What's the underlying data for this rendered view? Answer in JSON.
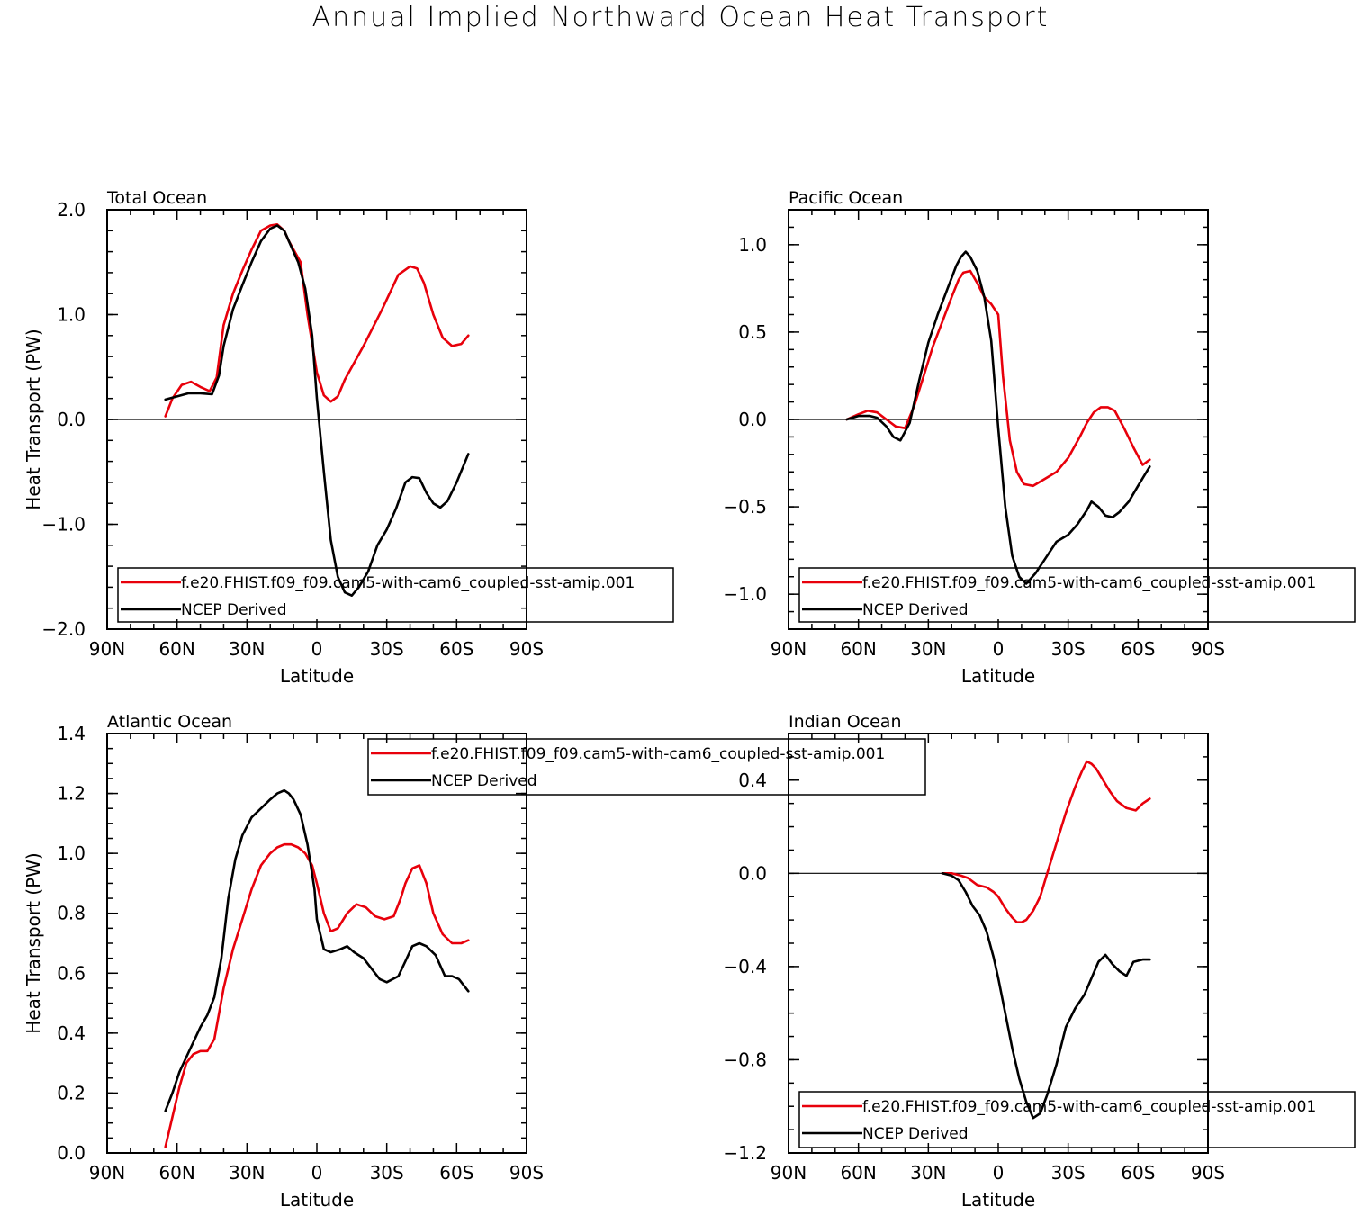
{
  "title": "Annual Implied Northward Ocean Heat Transport",
  "colors": {
    "model": "#e8000b",
    "obs": "#000000",
    "zero_line": "#000000"
  },
  "chart_data": [
    {
      "type": "line",
      "title": "Total Ocean",
      "xlabel": "Latitude",
      "ylabel": "Heat Transport (PW)",
      "xlim": [
        90,
        -90
      ],
      "ylim": [
        -2.0,
        2.0
      ],
      "xticks": [
        90,
        60,
        30,
        0,
        -30,
        -60,
        -90
      ],
      "xticklabels": [
        "90N",
        "60N",
        "30N",
        "0",
        "30S",
        "60S",
        "90S"
      ],
      "yticks": [
        -2.0,
        -1.0,
        0.0,
        1.0,
        2.0
      ],
      "yticklabels": [
        "−2.0",
        "−1.0",
        "0.0",
        "1.0",
        "2.0"
      ],
      "yminor": 0.2,
      "zero_line": true,
      "legend_placement": "bottom",
      "series": [
        {
          "name": "f.e20.FHIST.f09_f09.cam5-with-cam6_coupled-sst-amip.001",
          "color": "#e8000b",
          "x": [
            65,
            62,
            58,
            54,
            50,
            46,
            43,
            40,
            36,
            32,
            28,
            24,
            20,
            17,
            14,
            12,
            10,
            7,
            4,
            0,
            -3,
            -6,
            -9,
            -12,
            -20,
            -28,
            -35,
            -40,
            -43,
            -46,
            -50,
            -54,
            -58,
            -62,
            -65
          ],
          "y": [
            0.03,
            0.2,
            0.33,
            0.36,
            0.31,
            0.27,
            0.4,
            0.9,
            1.2,
            1.42,
            1.62,
            1.8,
            1.85,
            1.86,
            1.8,
            1.7,
            1.62,
            1.5,
            1.0,
            0.45,
            0.23,
            0.17,
            0.22,
            0.38,
            0.7,
            1.05,
            1.38,
            1.46,
            1.44,
            1.3,
            1.0,
            0.78,
            0.7,
            0.72,
            0.8
          ]
        },
        {
          "name": "NCEP Derived",
          "color": "#000000",
          "x": [
            65,
            60,
            55,
            50,
            45,
            42,
            40,
            36,
            32,
            28,
            24,
            20,
            17,
            14,
            11,
            8,
            5,
            2,
            0,
            -3,
            -6,
            -9,
            -12,
            -15,
            -18,
            -22,
            -26,
            -30,
            -34,
            -38,
            -41,
            -44,
            -47,
            -50,
            -53,
            -56,
            -60,
            -65
          ],
          "y": [
            0.19,
            0.22,
            0.25,
            0.25,
            0.24,
            0.42,
            0.7,
            1.05,
            1.28,
            1.5,
            1.7,
            1.82,
            1.85,
            1.8,
            1.65,
            1.5,
            1.25,
            0.8,
            0.2,
            -0.5,
            -1.15,
            -1.5,
            -1.65,
            -1.68,
            -1.6,
            -1.45,
            -1.2,
            -1.05,
            -0.85,
            -0.6,
            -0.55,
            -0.56,
            -0.7,
            -0.8,
            -0.84,
            -0.78,
            -0.6,
            -0.33
          ]
        }
      ]
    },
    {
      "type": "line",
      "title": "Pacific Ocean",
      "xlabel": "Latitude",
      "ylabel": "",
      "xlim": [
        90,
        -90
      ],
      "ylim": [
        -1.2,
        1.2
      ],
      "xticks": [
        90,
        60,
        30,
        0,
        -30,
        -60,
        -90
      ],
      "xticklabels": [
        "90N",
        "60N",
        "30N",
        "0",
        "30S",
        "60S",
        "90S"
      ],
      "yticks": [
        -1.0,
        -0.5,
        0.0,
        0.5,
        1.0
      ],
      "yticklabels": [
        "−1.0",
        "−0.5",
        "0.0",
        "0.5",
        "1.0"
      ],
      "yminor": 0.1,
      "zero_line": true,
      "legend_placement": "bottom",
      "series": [
        {
          "name": "f.e20.FHIST.f09_f09.cam5-with-cam6_coupled-sst-amip.001",
          "color": "#e8000b",
          "x": [
            65,
            60,
            56,
            52,
            48,
            44,
            40,
            36,
            32,
            28,
            24,
            20,
            17,
            15,
            12,
            9,
            6,
            3,
            0,
            -2,
            -5,
            -8,
            -11,
            -15,
            -20,
            -25,
            -30,
            -35,
            -38,
            -41,
            -44,
            -47,
            -50,
            -54,
            -58,
            -62,
            -65
          ],
          "y": [
            0.0,
            0.03,
            0.05,
            0.04,
            0.0,
            -0.04,
            -0.05,
            0.08,
            0.25,
            0.42,
            0.56,
            0.7,
            0.8,
            0.84,
            0.85,
            0.78,
            0.7,
            0.66,
            0.6,
            0.25,
            -0.12,
            -0.3,
            -0.37,
            -0.38,
            -0.34,
            -0.3,
            -0.22,
            -0.1,
            -0.02,
            0.04,
            0.07,
            0.07,
            0.05,
            -0.05,
            -0.16,
            -0.26,
            -0.23
          ]
        },
        {
          "name": "NCEP Derived",
          "color": "#000000",
          "x": [
            65,
            60,
            55,
            52,
            48,
            45,
            42,
            38,
            34,
            30,
            26,
            22,
            18,
            16,
            14,
            12,
            9,
            6,
            3,
            0,
            -3,
            -6,
            -9,
            -12,
            -16,
            -20,
            -25,
            -30,
            -34,
            -38,
            -40,
            -43,
            -46,
            -49,
            -52,
            -56,
            -60,
            -65
          ],
          "y": [
            0.0,
            0.02,
            0.02,
            0.01,
            -0.04,
            -0.1,
            -0.12,
            -0.02,
            0.22,
            0.44,
            0.6,
            0.74,
            0.88,
            0.93,
            0.96,
            0.93,
            0.85,
            0.7,
            0.45,
            -0.05,
            -0.5,
            -0.78,
            -0.9,
            -0.94,
            -0.88,
            -0.8,
            -0.7,
            -0.66,
            -0.6,
            -0.52,
            -0.47,
            -0.5,
            -0.55,
            -0.56,
            -0.53,
            -0.47,
            -0.38,
            -0.27
          ]
        }
      ]
    },
    {
      "type": "line",
      "title": "Atlantic Ocean",
      "xlabel": "Latitude",
      "ylabel": "Heat Transport (PW)",
      "xlim": [
        90,
        -90
      ],
      "ylim": [
        0.0,
        1.4
      ],
      "xticks": [
        90,
        60,
        30,
        0,
        -30,
        -60,
        -90
      ],
      "xticklabels": [
        "90N",
        "60N",
        "30N",
        "0",
        "30S",
        "60S",
        "90S"
      ],
      "yticks": [
        0.0,
        0.2,
        0.4,
        0.6,
        0.8,
        1.0,
        1.2,
        1.4
      ],
      "yticklabels": [
        "0.0",
        "0.2",
        "0.4",
        "0.6",
        "0.8",
        "1.0",
        "1.2",
        "1.4"
      ],
      "yminor": 0.05,
      "zero_line": false,
      "legend_placement": "top-right",
      "series": [
        {
          "name": "f.e20.FHIST.f09_f09.cam5-with-cam6_coupled-sst-amip.001",
          "color": "#e8000b",
          "x": [
            65,
            62,
            59,
            56,
            53,
            50,
            47,
            44,
            40,
            36,
            32,
            28,
            24,
            20,
            17,
            14,
            11,
            8,
            5,
            2,
            0,
            -3,
            -6,
            -9,
            -13,
            -17,
            -21,
            -25,
            -29,
            -33,
            -36,
            -38,
            -41,
            -44,
            -47,
            -50,
            -54,
            -58,
            -62,
            -65
          ],
          "y": [
            0.02,
            0.12,
            0.22,
            0.3,
            0.33,
            0.34,
            0.34,
            0.38,
            0.55,
            0.68,
            0.78,
            0.88,
            0.96,
            1.0,
            1.02,
            1.03,
            1.03,
            1.02,
            1.0,
            0.96,
            0.9,
            0.8,
            0.74,
            0.75,
            0.8,
            0.83,
            0.82,
            0.79,
            0.78,
            0.79,
            0.85,
            0.9,
            0.95,
            0.96,
            0.9,
            0.8,
            0.73,
            0.7,
            0.7,
            0.71
          ]
        },
        {
          "name": "NCEP Derived",
          "color": "#000000",
          "x": [
            65,
            62,
            59,
            56,
            53,
            50,
            47,
            44,
            41,
            38,
            35,
            32,
            28,
            24,
            20,
            17,
            14,
            12,
            10,
            7,
            4,
            1,
            0,
            -3,
            -6,
            -10,
            -13,
            -16,
            -20,
            -24,
            -27,
            -30,
            -35,
            -38,
            -41,
            -44,
            -47,
            -51,
            -55,
            -58,
            -61,
            -65
          ],
          "y": [
            0.14,
            0.2,
            0.27,
            0.32,
            0.37,
            0.42,
            0.46,
            0.52,
            0.65,
            0.85,
            0.98,
            1.06,
            1.12,
            1.15,
            1.18,
            1.2,
            1.21,
            1.2,
            1.18,
            1.13,
            1.03,
            0.88,
            0.78,
            0.68,
            0.67,
            0.68,
            0.69,
            0.67,
            0.65,
            0.61,
            0.58,
            0.57,
            0.59,
            0.64,
            0.69,
            0.7,
            0.69,
            0.66,
            0.59,
            0.59,
            0.58,
            0.54
          ]
        }
      ]
    },
    {
      "type": "line",
      "title": "Indian Ocean",
      "xlabel": "Latitude",
      "ylabel": "",
      "xlim": [
        90,
        -90
      ],
      "ylim": [
        -1.2,
        0.6
      ],
      "xticks": [
        90,
        60,
        30,
        0,
        -30,
        -60,
        -90
      ],
      "xticklabels": [
        "90N",
        "60N",
        "30N",
        "0",
        "30S",
        "60S",
        "90S"
      ],
      "yticks": [
        -1.2,
        -0.8,
        -0.4,
        0.0,
        0.4
      ],
      "yticklabels": [
        "−1.2",
        "−0.8",
        "−0.4",
        "0.0",
        "0.4"
      ],
      "yminor": 0.1,
      "zero_line": true,
      "legend_placement": "bottom-right",
      "series": [
        {
          "name": "f.e20.FHIST.f09_f09.cam5-with-cam6_coupled-sst-amip.001",
          "color": "#e8000b",
          "x": [
            24,
            20,
            16,
            13,
            9,
            5,
            2,
            0,
            -3,
            -6,
            -8,
            -10,
            -12,
            -15,
            -18,
            -21,
            -25,
            -29,
            -33,
            -36,
            -38,
            -40,
            -42,
            -45,
            -48,
            -51,
            -55,
            -59,
            -62,
            -65
          ],
          "y": [
            0.0,
            0.0,
            -0.01,
            -0.02,
            -0.05,
            -0.06,
            -0.08,
            -0.1,
            -0.15,
            -0.19,
            -0.21,
            -0.21,
            -0.2,
            -0.16,
            -0.1,
            0.0,
            0.13,
            0.26,
            0.37,
            0.44,
            0.48,
            0.47,
            0.45,
            0.4,
            0.35,
            0.31,
            0.28,
            0.27,
            0.3,
            0.32
          ]
        },
        {
          "name": "NCEP Derived",
          "color": "#000000",
          "x": [
            24,
            20,
            17,
            14,
            11,
            8,
            5,
            2,
            0,
            -3,
            -6,
            -9,
            -12,
            -15,
            -18,
            -21,
            -25,
            -29,
            -33,
            -37,
            -40,
            -43,
            -46,
            -49,
            -52,
            -55,
            -58,
            -62,
            -65
          ],
          "y": [
            0.0,
            -0.01,
            -0.03,
            -0.08,
            -0.14,
            -0.18,
            -0.25,
            -0.36,
            -0.45,
            -0.6,
            -0.75,
            -0.88,
            -0.98,
            -1.05,
            -1.03,
            -0.95,
            -0.82,
            -0.66,
            -0.58,
            -0.52,
            -0.45,
            -0.38,
            -0.35,
            -0.39,
            -0.42,
            -0.44,
            -0.38,
            -0.37,
            -0.37
          ]
        }
      ]
    }
  ]
}
